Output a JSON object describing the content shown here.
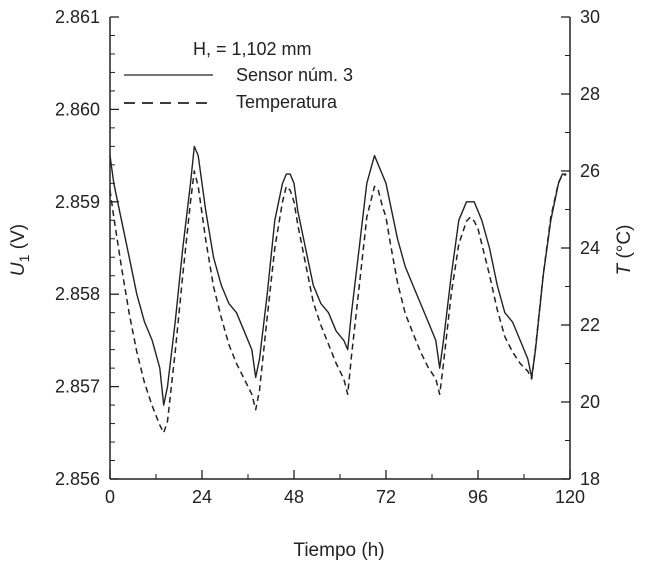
{
  "chart_data": {
    "type": "line",
    "title": "",
    "xlabel": "Tiempo (h)",
    "ylabel_left": "U1 (V)",
    "ylabel_left_main": "U",
    "ylabel_left_sub": "1",
    "ylabel_left_unit": " (V)",
    "ylabel_right": "T (°C)",
    "ylabel_right_main": "T",
    "ylabel_right_unit": " (°C)",
    "xlim": [
      0,
      120
    ],
    "ylim_left": [
      2.856,
      2.861
    ],
    "ylim_right": [
      18,
      30
    ],
    "x_ticks": [
      "0",
      "24",
      "48",
      "72",
      "96",
      "120"
    ],
    "y_left_ticks": [
      "2.856",
      "2.857",
      "2.858",
      "2.859",
      "2.860",
      "2.861"
    ],
    "y_right_ticks": [
      "18",
      "20",
      "22",
      "24",
      "26",
      "28",
      "30"
    ],
    "annotation": "H, = 1,102 mm",
    "legend_position": "top-left",
    "grid": false,
    "series": [
      {
        "name": "Sensor núm. 3",
        "axis": "left",
        "style": "solid",
        "color": "#222222",
        "x": [
          0,
          1,
          3,
          5,
          7,
          9,
          11,
          13,
          14,
          15,
          17,
          19,
          21,
          22,
          23,
          25,
          27,
          29,
          31,
          33,
          35,
          37,
          38,
          39,
          41,
          43,
          45,
          46,
          47,
          48,
          49,
          51,
          53,
          55,
          57,
          59,
          61,
          62,
          63,
          65,
          67,
          69,
          70,
          71,
          72,
          73,
          75,
          77,
          79,
          81,
          83,
          85,
          86,
          87,
          89,
          91,
          93,
          94,
          95,
          96,
          97,
          99,
          101,
          103,
          105,
          107,
          109,
          110,
          111,
          113,
          115,
          117,
          118,
          119
        ],
        "y": [
          2.8595,
          2.8592,
          2.8588,
          2.8584,
          2.858,
          2.8577,
          2.8575,
          2.8572,
          2.8568,
          2.857,
          2.8577,
          2.8585,
          2.8592,
          2.8596,
          2.8595,
          2.8589,
          2.8584,
          2.8581,
          2.8579,
          2.8578,
          2.8576,
          2.8574,
          2.8571,
          2.8573,
          2.858,
          2.8588,
          2.8592,
          2.8593,
          2.8593,
          2.8592,
          2.8589,
          2.8585,
          2.8581,
          2.8579,
          2.8578,
          2.8576,
          2.8575,
          2.8574,
          2.8578,
          2.8585,
          2.8592,
          2.8595,
          2.8594,
          2.8593,
          2.8592,
          2.859,
          2.8586,
          2.8583,
          2.8581,
          2.8579,
          2.8577,
          2.8575,
          2.8572,
          2.8575,
          2.8582,
          2.8588,
          2.859,
          2.859,
          2.859,
          2.8589,
          2.8588,
          2.8585,
          2.8581,
          2.8578,
          2.8577,
          2.8575,
          2.8573,
          2.8571,
          2.8574,
          2.8582,
          2.8588,
          2.8592,
          2.8593,
          2.8593
        ]
      },
      {
        "name": "Temperatura",
        "axis": "right",
        "style": "dashed",
        "color": "#222222",
        "x": [
          0,
          1,
          3,
          5,
          7,
          9,
          11,
          13,
          14,
          15,
          17,
          19,
          21,
          22,
          23,
          25,
          27,
          29,
          31,
          33,
          35,
          37,
          38,
          39,
          41,
          43,
          45,
          46,
          47,
          48,
          49,
          51,
          53,
          55,
          57,
          59,
          61,
          62,
          63,
          65,
          67,
          69,
          70,
          71,
          72,
          73,
          75,
          77,
          79,
          81,
          83,
          85,
          86,
          87,
          89,
          91,
          93,
          94,
          95,
          96,
          97,
          99,
          101,
          103,
          105,
          107,
          109,
          110,
          111,
          113,
          115,
          117,
          118,
          119
        ],
        "y": [
          25.5,
          24.8,
          23.5,
          22.3,
          21.3,
          20.5,
          19.9,
          19.4,
          19.2,
          19.5,
          21.3,
          23.3,
          25.2,
          26.0,
          25.6,
          24.2,
          23.0,
          22.2,
          21.5,
          21.0,
          20.6,
          20.2,
          19.8,
          20.3,
          22.2,
          24.0,
          25.2,
          25.6,
          25.5,
          25.2,
          24.6,
          23.6,
          22.6,
          22.0,
          21.5,
          21.0,
          20.6,
          20.2,
          21.2,
          23.0,
          24.8,
          25.6,
          25.5,
          25.1,
          24.8,
          24.2,
          23.1,
          22.3,
          21.8,
          21.3,
          20.9,
          20.6,
          20.2,
          21.0,
          22.8,
          24.1,
          24.7,
          24.8,
          24.7,
          24.5,
          24.1,
          23.3,
          22.4,
          21.7,
          21.3,
          21.0,
          20.8,
          20.6,
          21.4,
          23.3,
          24.8,
          25.7,
          25.9,
          25.9
        ]
      }
    ]
  }
}
